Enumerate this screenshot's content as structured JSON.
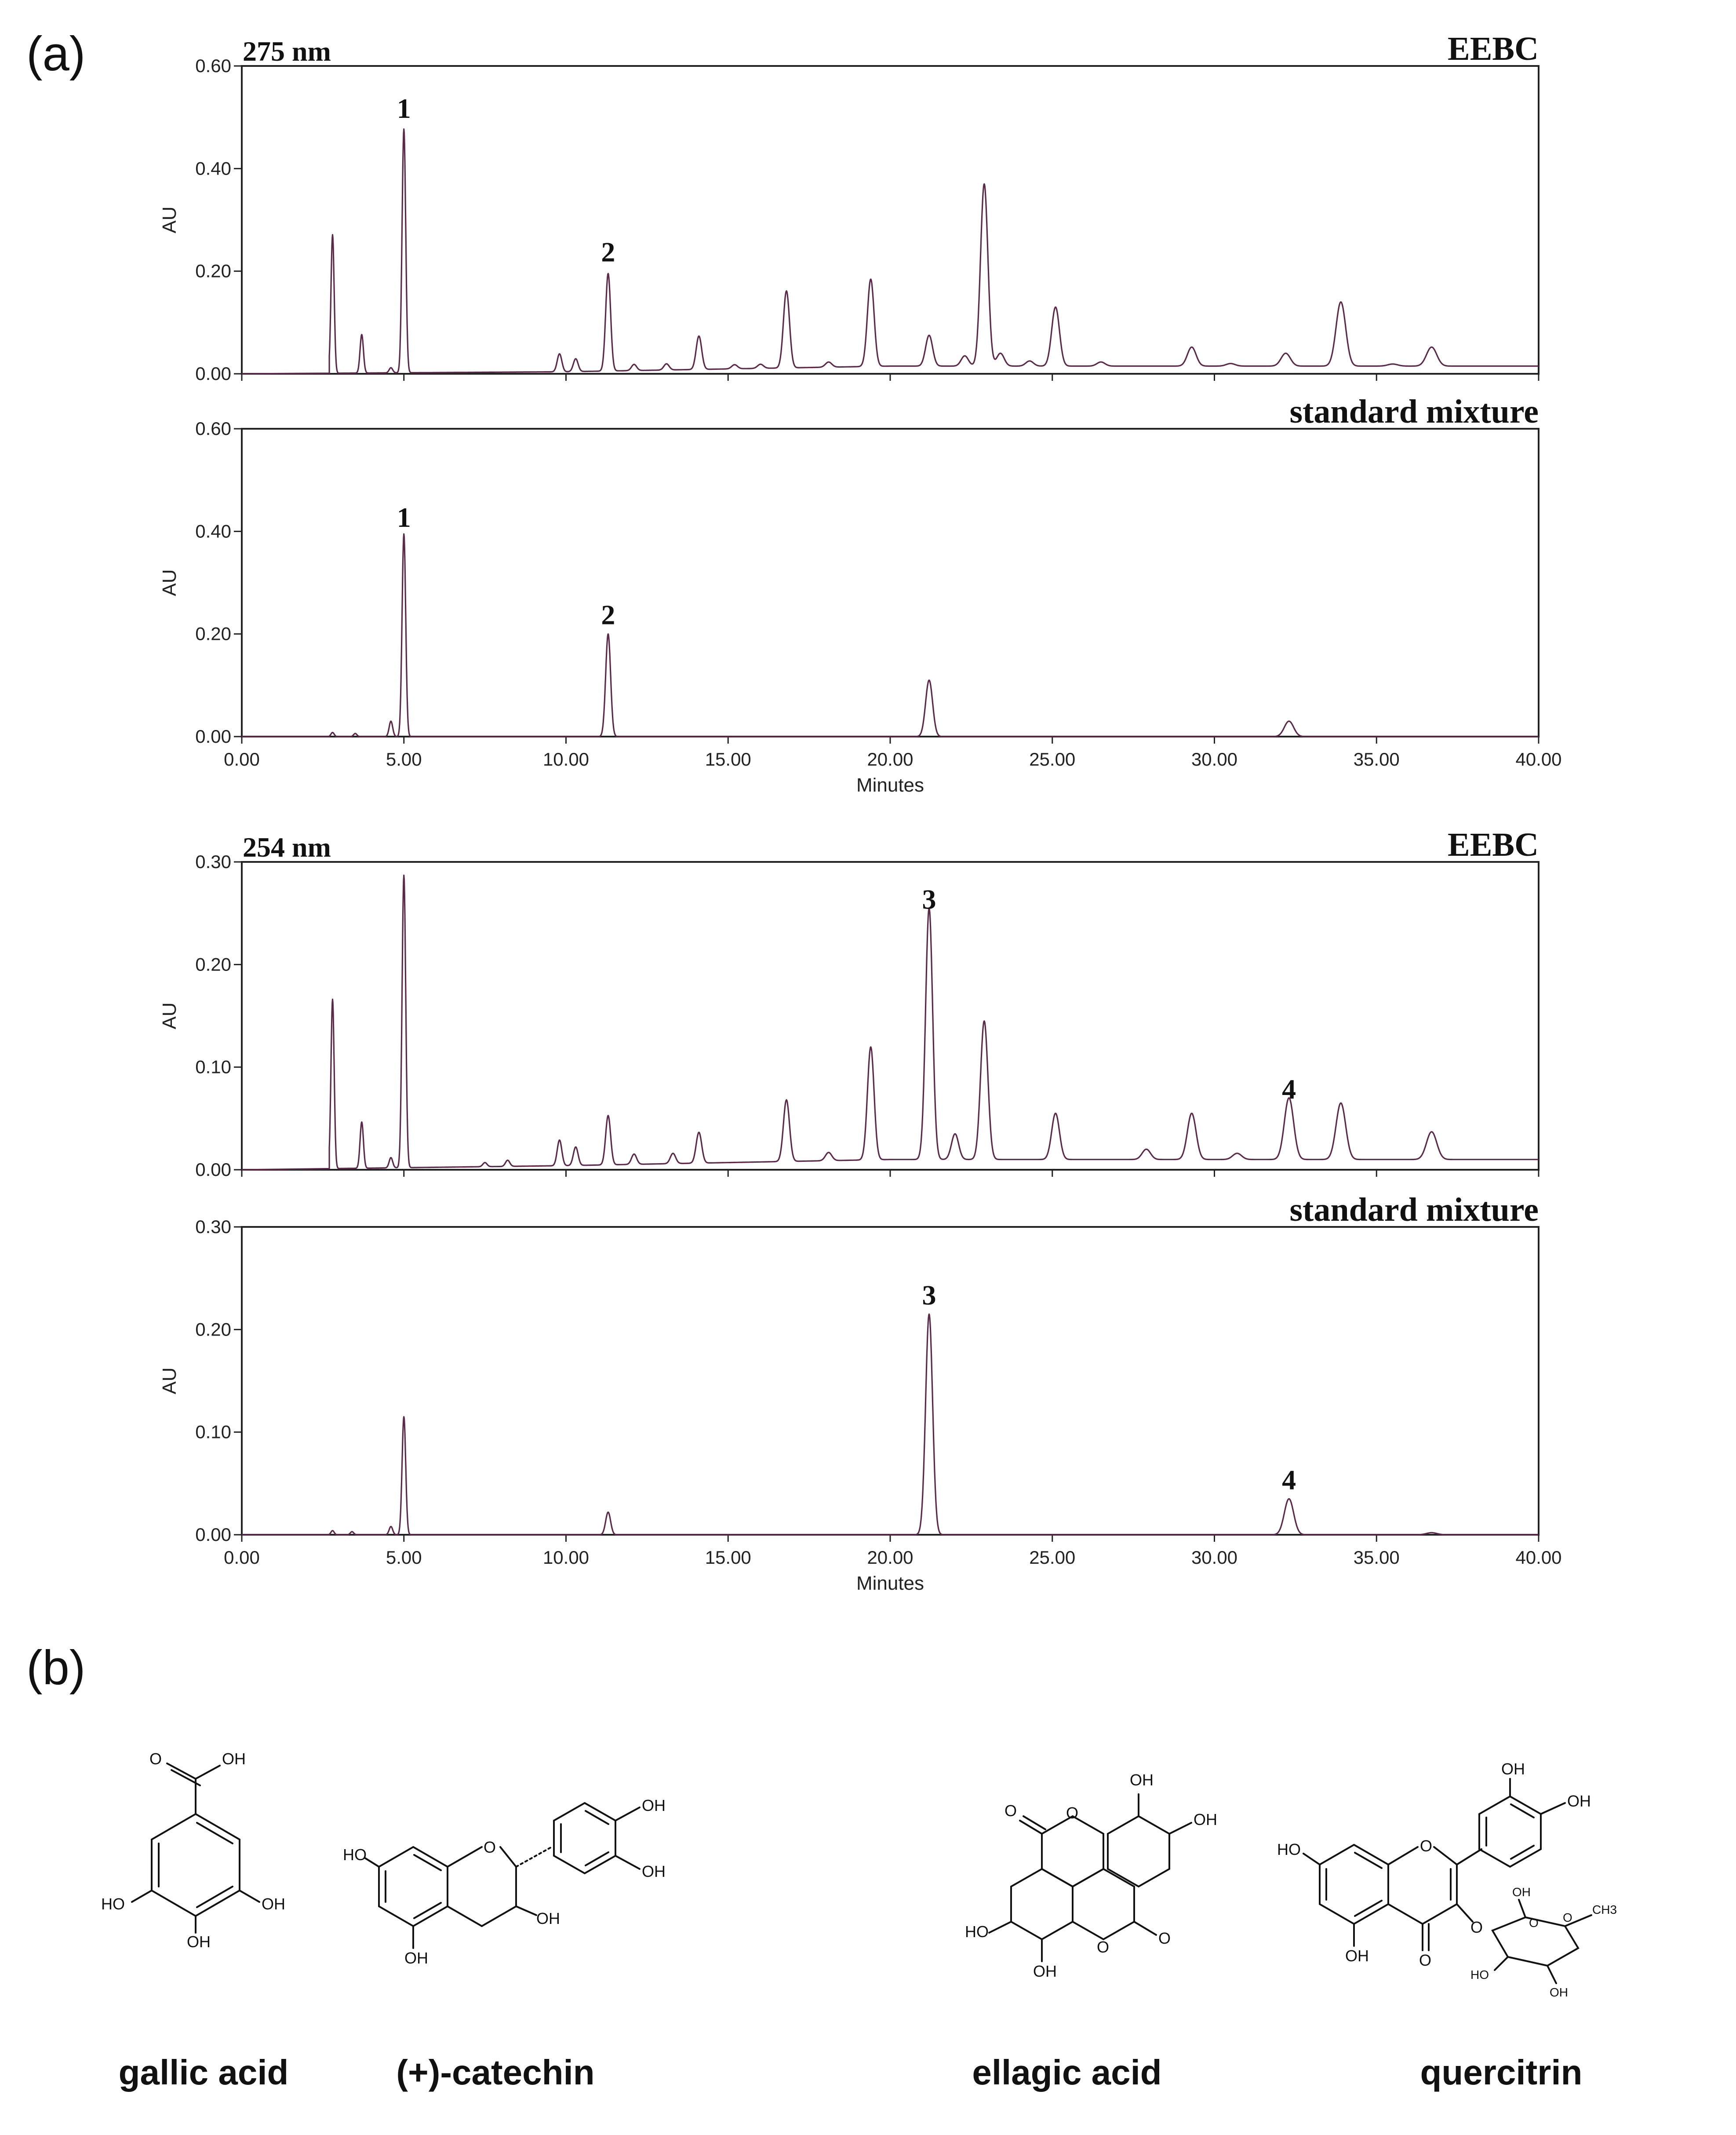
{
  "figure": {
    "panel_a_label": "(a)",
    "panel_b_label": "(b)"
  },
  "chart_data": [
    {
      "type": "line",
      "wavelength": "275 nm",
      "trace_label": "EEBC",
      "ylabel": "AU",
      "xlabel": "",
      "xlim": [
        0,
        40
      ],
      "ylim": [
        0,
        0.6
      ],
      "y_ticks": [
        "0.00",
        "0.20",
        "0.40",
        "0.60"
      ],
      "x_ticks": [],
      "peak_labels": [
        {
          "label": "1",
          "x": 5.0,
          "y": 0.48
        },
        {
          "label": "2",
          "x": 11.3,
          "y": 0.2
        }
      ],
      "baseline": [
        [
          0,
          0.0
        ],
        [
          10,
          0.004
        ],
        [
          20,
          0.015
        ],
        [
          30,
          0.015
        ],
        [
          40,
          0.015
        ]
      ],
      "peaks": [
        {
          "x": 2.8,
          "y": 0.27
        },
        {
          "x": 3.7,
          "y": 0.075
        },
        {
          "x": 4.6,
          "y": 0.01
        },
        {
          "x": 5.0,
          "y": 0.475
        },
        {
          "x": 9.8,
          "y": 0.035
        },
        {
          "x": 10.3,
          "y": 0.025
        },
        {
          "x": 11.3,
          "y": 0.19
        },
        {
          "x": 12.1,
          "y": 0.012
        },
        {
          "x": 13.1,
          "y": 0.012
        },
        {
          "x": 14.1,
          "y": 0.065
        },
        {
          "x": 15.2,
          "y": 0.008
        },
        {
          "x": 16.0,
          "y": 0.008
        },
        {
          "x": 16.8,
          "y": 0.15
        },
        {
          "x": 18.1,
          "y": 0.01
        },
        {
          "x": 19.4,
          "y": 0.17
        },
        {
          "x": 21.2,
          "y": 0.06
        },
        {
          "x": 22.3,
          "y": 0.02
        },
        {
          "x": 22.9,
          "y": 0.355
        },
        {
          "x": 23.4,
          "y": 0.025
        },
        {
          "x": 24.3,
          "y": 0.01
        },
        {
          "x": 25.1,
          "y": 0.115
        },
        {
          "x": 26.5,
          "y": 0.008
        },
        {
          "x": 29.3,
          "y": 0.037
        },
        {
          "x": 30.5,
          "y": 0.005
        },
        {
          "x": 32.2,
          "y": 0.025
        },
        {
          "x": 33.9,
          "y": 0.125
        },
        {
          "x": 35.5,
          "y": 0.004
        },
        {
          "x": 36.7,
          "y": 0.037
        }
      ]
    },
    {
      "type": "line",
      "wavelength": "",
      "trace_label": "standard mixture",
      "ylabel": "AU",
      "xlabel": "Minutes",
      "xlim": [
        0,
        40
      ],
      "ylim": [
        0,
        0.6
      ],
      "y_ticks": [
        "0.00",
        "0.20",
        "0.40",
        "0.60"
      ],
      "x_ticks": [
        "0.00",
        "5.00",
        "10.00",
        "15.00",
        "20.00",
        "25.00",
        "30.00",
        "35.00",
        "40.00"
      ],
      "peak_labels": [
        {
          "label": "1",
          "x": 5.0,
          "y": 0.39
        },
        {
          "label": "2",
          "x": 11.3,
          "y": 0.2
        }
      ],
      "baseline": [
        [
          0,
          0.0
        ],
        [
          40,
          0.0
        ]
      ],
      "peaks": [
        {
          "x": 2.8,
          "y": 0.008
        },
        {
          "x": 3.5,
          "y": 0.006
        },
        {
          "x": 4.6,
          "y": 0.03
        },
        {
          "x": 5.0,
          "y": 0.395
        },
        {
          "x": 11.3,
          "y": 0.2
        },
        {
          "x": 21.2,
          "y": 0.11
        },
        {
          "x": 32.3,
          "y": 0.03
        }
      ]
    },
    {
      "type": "line",
      "wavelength": "254 nm",
      "trace_label": "EEBC",
      "ylabel": "AU",
      "xlabel": "",
      "xlim": [
        0,
        40
      ],
      "ylim": [
        0,
        0.3
      ],
      "y_ticks": [
        "0.00",
        "0.10",
        "0.20",
        "0.30"
      ],
      "x_ticks": [],
      "peak_labels": [
        {
          "label": "3",
          "x": 21.2,
          "y": 0.245
        },
        {
          "label": "4",
          "x": 32.3,
          "y": 0.06
        }
      ],
      "baseline": [
        [
          0,
          0.0
        ],
        [
          10,
          0.004
        ],
        [
          20,
          0.01
        ],
        [
          30,
          0.01
        ],
        [
          40,
          0.01
        ]
      ],
      "peaks": [
        {
          "x": 2.8,
          "y": 0.165
        },
        {
          "x": 3.7,
          "y": 0.045
        },
        {
          "x": 4.6,
          "y": 0.01
        },
        {
          "x": 5.0,
          "y": 0.285
        },
        {
          "x": 7.5,
          "y": 0.004
        },
        {
          "x": 8.2,
          "y": 0.006
        },
        {
          "x": 9.8,
          "y": 0.025
        },
        {
          "x": 10.3,
          "y": 0.018
        },
        {
          "x": 11.3,
          "y": 0.048
        },
        {
          "x": 12.1,
          "y": 0.01
        },
        {
          "x": 13.3,
          "y": 0.01
        },
        {
          "x": 14.1,
          "y": 0.03
        },
        {
          "x": 16.8,
          "y": 0.06
        },
        {
          "x": 18.1,
          "y": 0.008
        },
        {
          "x": 19.4,
          "y": 0.11
        },
        {
          "x": 21.2,
          "y": 0.245
        },
        {
          "x": 22.0,
          "y": 0.025
        },
        {
          "x": 22.9,
          "y": 0.135
        },
        {
          "x": 25.1,
          "y": 0.045
        },
        {
          "x": 27.9,
          "y": 0.01
        },
        {
          "x": 29.3,
          "y": 0.045
        },
        {
          "x": 30.7,
          "y": 0.006
        },
        {
          "x": 32.3,
          "y": 0.06
        },
        {
          "x": 33.9,
          "y": 0.055
        },
        {
          "x": 36.7,
          "y": 0.027
        }
      ]
    },
    {
      "type": "line",
      "wavelength": "",
      "trace_label": "standard mixture",
      "ylabel": "AU",
      "xlabel": "Minutes",
      "xlim": [
        0,
        40
      ],
      "ylim": [
        0,
        0.3
      ],
      "y_ticks": [
        "0.00",
        "0.10",
        "0.20",
        "0.30"
      ],
      "x_ticks": [
        "0.00",
        "5.00",
        "10.00",
        "15.00",
        "20.00",
        "25.00",
        "30.00",
        "35.00",
        "40.00"
      ],
      "peak_labels": [
        {
          "label": "3",
          "x": 21.2,
          "y": 0.215
        },
        {
          "label": "4",
          "x": 32.3,
          "y": 0.035
        }
      ],
      "baseline": [
        [
          0,
          0.0
        ],
        [
          40,
          0.0
        ]
      ],
      "peaks": [
        {
          "x": 2.8,
          "y": 0.004
        },
        {
          "x": 3.4,
          "y": 0.003
        },
        {
          "x": 4.6,
          "y": 0.008
        },
        {
          "x": 5.0,
          "y": 0.115
        },
        {
          "x": 11.3,
          "y": 0.022
        },
        {
          "x": 21.2,
          "y": 0.215
        },
        {
          "x": 32.3,
          "y": 0.035
        },
        {
          "x": 36.7,
          "y": 0.002
        }
      ]
    }
  ],
  "compounds": [
    {
      "name": "gallic acid",
      "atoms": [
        "O",
        "OH",
        "HO",
        "OH",
        "OH"
      ]
    },
    {
      "name": "(+)-catechin",
      "atoms": [
        "HO",
        "O",
        "OH",
        "OH",
        "OH",
        "OH"
      ]
    },
    {
      "name": "ellagic acid",
      "atoms": [
        "OH",
        "OH",
        "O",
        "O",
        "O",
        "O",
        "HO",
        "OH"
      ]
    },
    {
      "name": "quercitrin",
      "atoms": [
        "OH",
        "OH",
        "HO",
        "O",
        "O",
        "OH",
        "O",
        "HO",
        "OH",
        "OH",
        "O",
        "O",
        "CH3"
      ]
    }
  ]
}
